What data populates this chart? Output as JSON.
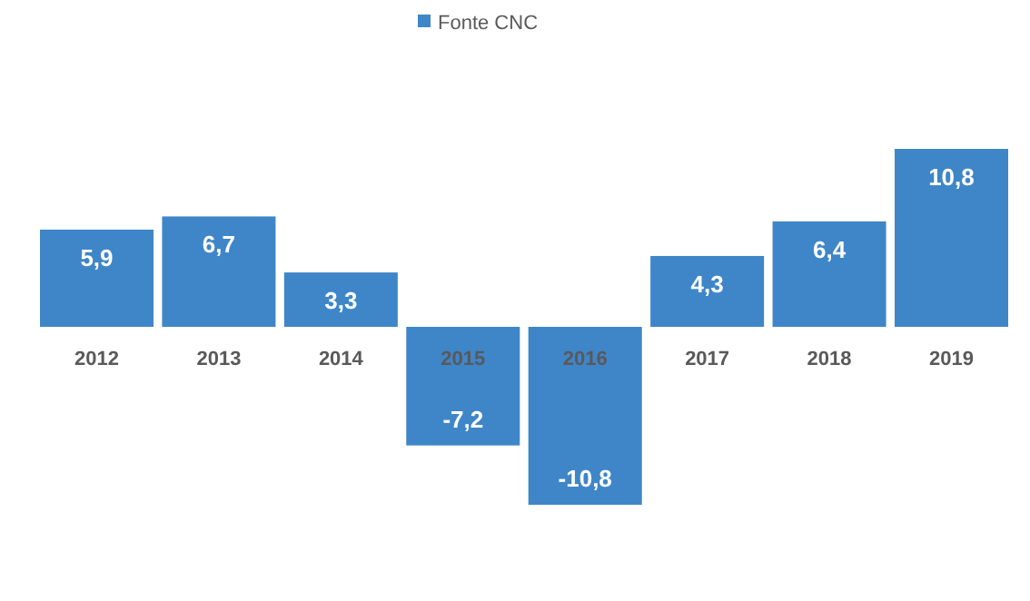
{
  "chart_data": {
    "type": "bar",
    "categories": [
      "2012",
      "2013",
      "2014",
      "2015",
      "2016",
      "2017",
      "2018",
      "2019"
    ],
    "series": [
      {
        "name": "Fonte CNC",
        "color": "#3f86c8",
        "values": [
          5.9,
          6.7,
          3.3,
          -7.2,
          -10.8,
          4.3,
          6.4,
          10.8
        ],
        "value_labels": [
          "5,9",
          "6,7",
          "3,3",
          "-7,2",
          "-10,8",
          "4,3",
          "6,4",
          "10,8"
        ]
      }
    ],
    "data_labels": true,
    "legend": "top",
    "grid": false
  }
}
